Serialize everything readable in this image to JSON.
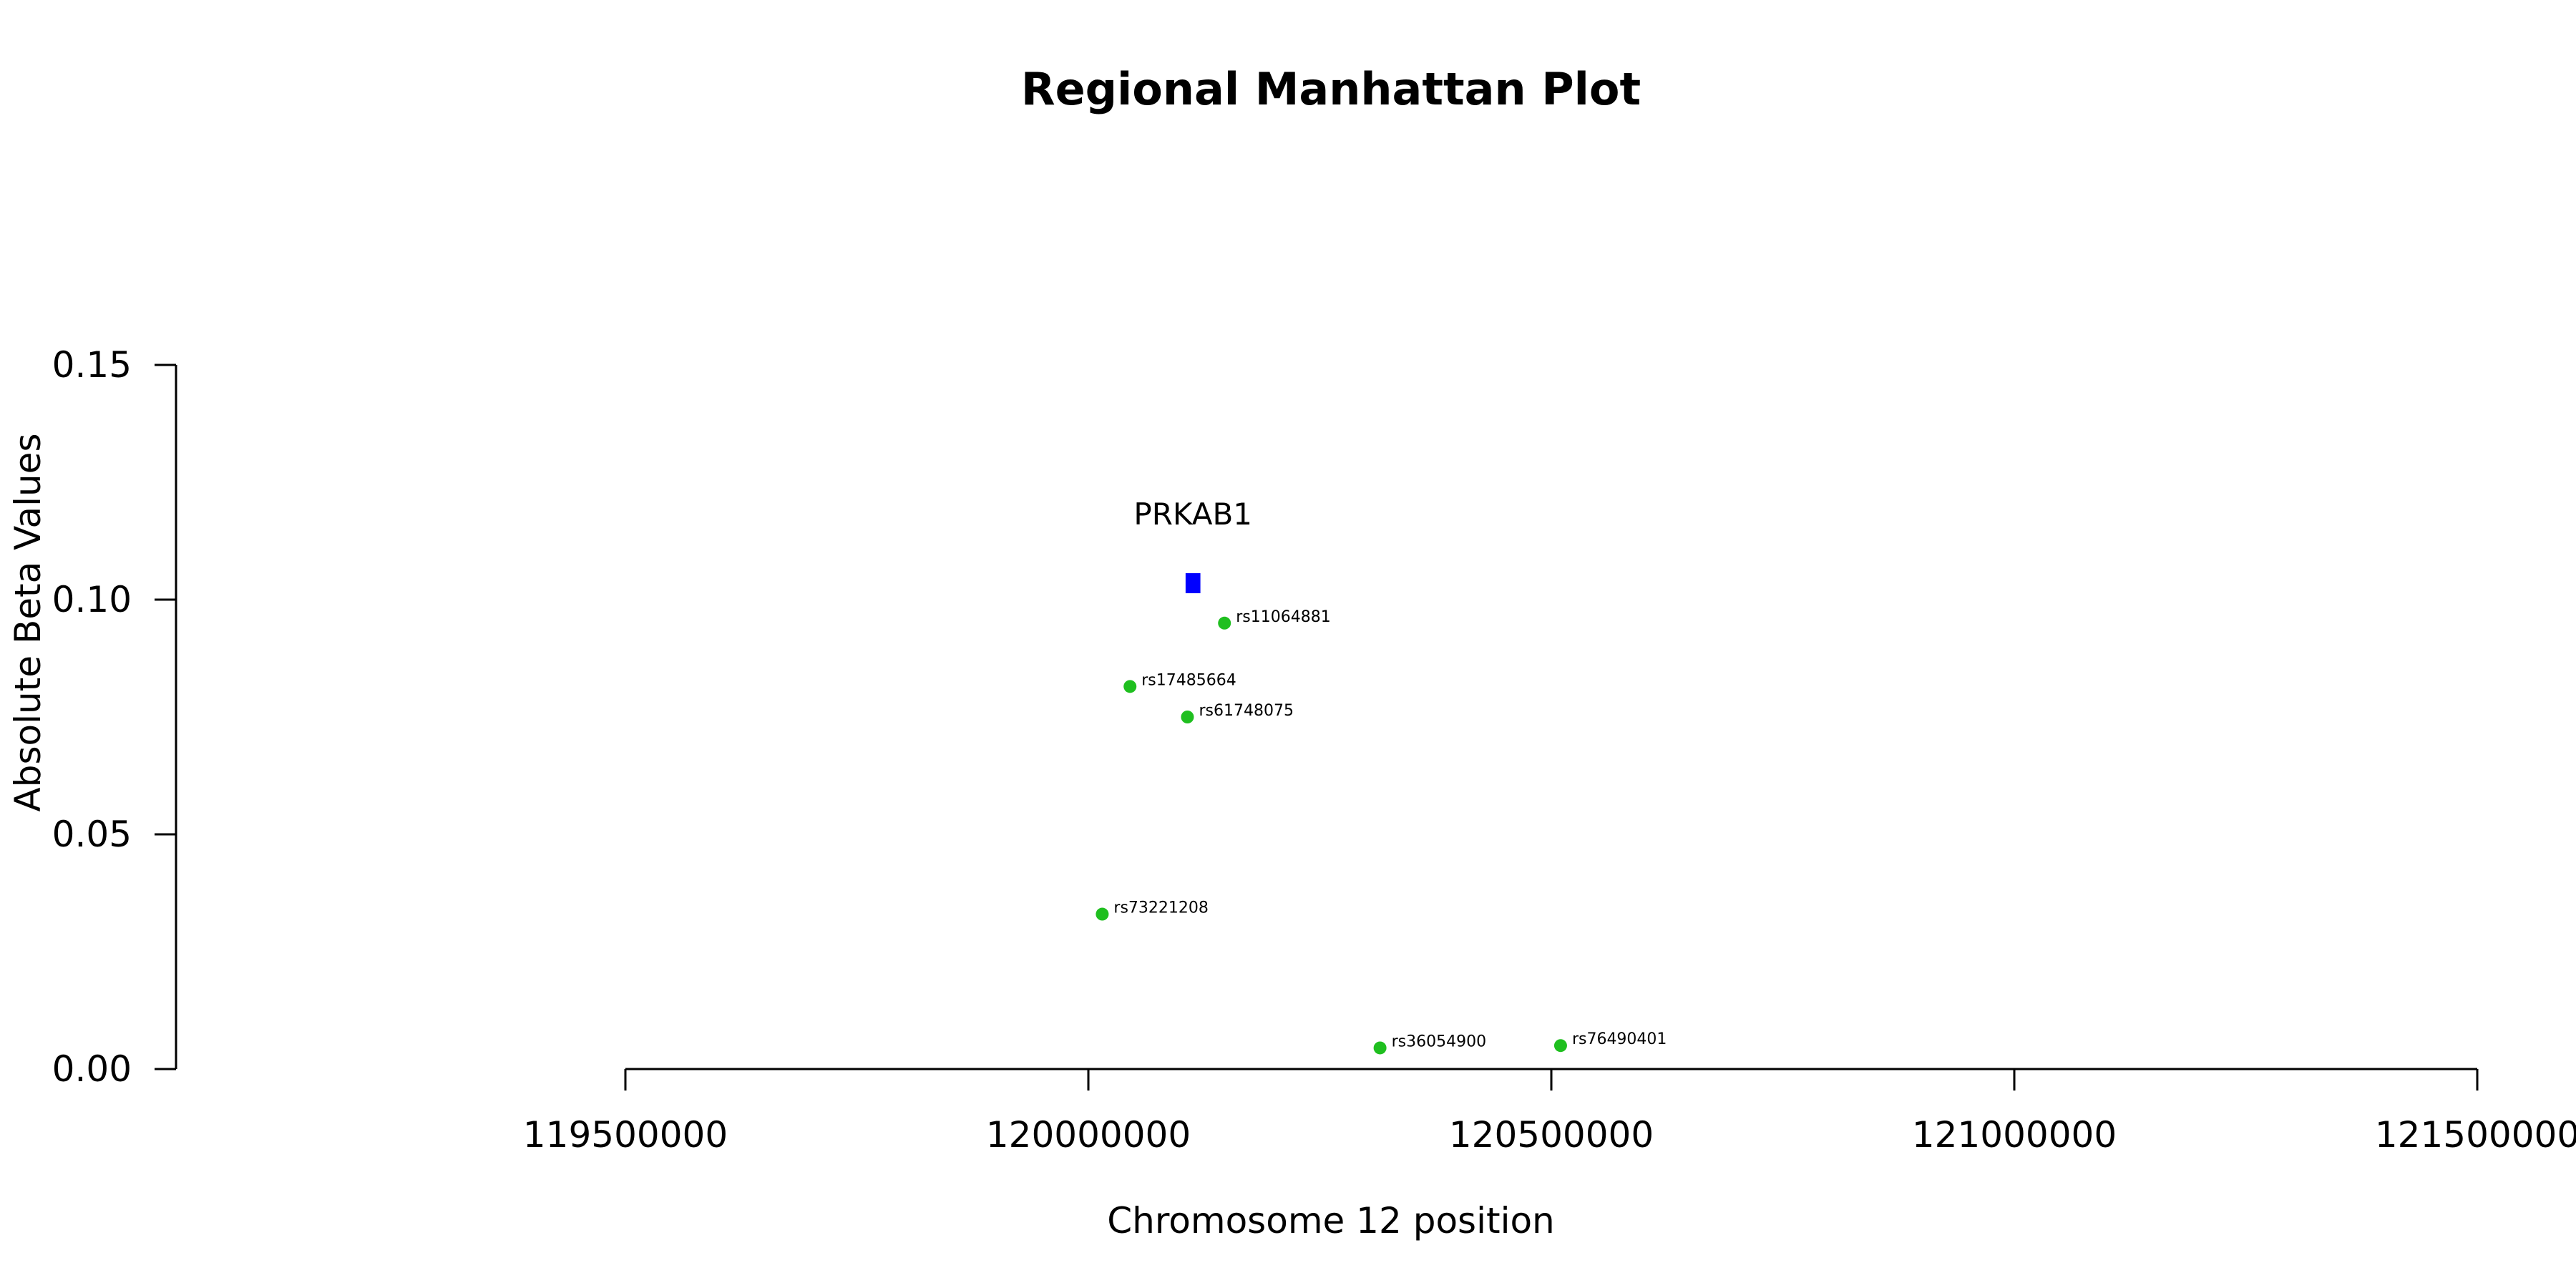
{
  "chart_data": {
    "type": "scatter",
    "title": "Regional Manhattan Plot",
    "xlabel": "Chromosome 12 position",
    "ylabel": "Absolute Beta Values",
    "xlim": [
      119500000,
      121500000
    ],
    "ylim": [
      0,
      0.15
    ],
    "x_ticks": [
      119500000,
      120000000,
      120500000,
      121000000,
      121500000
    ],
    "y_ticks": [
      0.0,
      0.05,
      0.1,
      0.15
    ],
    "y_tick_labels": [
      "0.00",
      "0.05",
      "0.10",
      "0.15"
    ],
    "x_tick_labels": [
      "119500000",
      "120000000",
      "120500000",
      "121000000",
      "121500000"
    ],
    "grid": false,
    "point_color": "#1fbf1f",
    "gene_color": "#0000ff",
    "points": [
      {
        "label": "rs11064881",
        "x": 120147000,
        "y": 0.095
      },
      {
        "label": "rs17485664",
        "x": 120045000,
        "y": 0.0815
      },
      {
        "label": "rs61748075",
        "x": 120107000,
        "y": 0.075
      },
      {
        "label": "rs73221208",
        "x": 120015000,
        "y": 0.033
      },
      {
        "label": "rs36054900",
        "x": 120315000,
        "y": 0.0045
      },
      {
        "label": "rs76490401",
        "x": 120510000,
        "y": 0.005
      }
    ],
    "gene": {
      "label": "PRKAB1",
      "x_start": 120105000,
      "x_end": 120121000,
      "y": 0.1035
    }
  }
}
